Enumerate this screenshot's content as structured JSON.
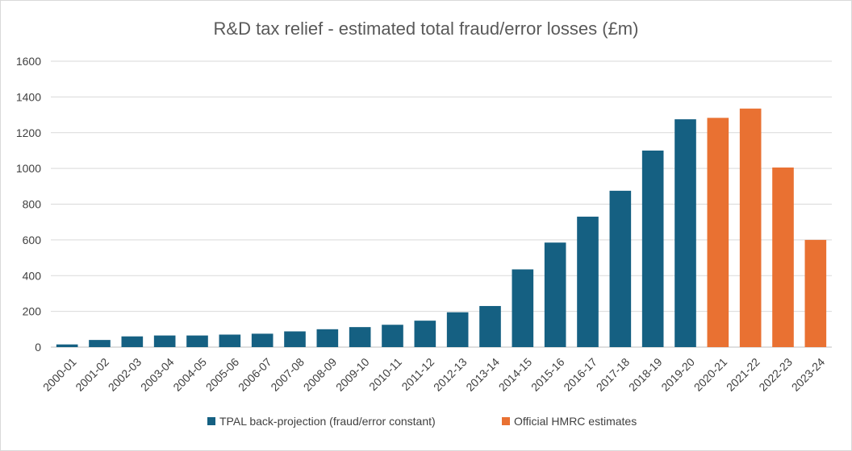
{
  "chart_data": {
    "type": "bar",
    "title": "R&D tax relief - estimated total fraud/error losses (£m)",
    "xlabel": "",
    "ylabel": "",
    "ylim": [
      0,
      1600
    ],
    "yticks": [
      "0",
      "200",
      "400",
      "600",
      "800",
      "1000",
      "1200",
      "1400",
      "1600"
    ],
    "grid": true,
    "legend_position": "bottom",
    "categories": [
      "2000-01",
      "2001-02",
      "2002-03",
      "2003-04",
      "2004-05",
      "2005-06",
      "2006-07",
      "2007-08",
      "2008-09",
      "2009-10",
      "2010-11",
      "2011-12",
      "2012-13",
      "2013-14",
      "2014-15",
      "2015-16",
      "2016-17",
      "2017-18",
      "2018-19",
      "2019-20",
      "2020-21",
      "2021-22",
      "2022-23",
      "2023-24"
    ],
    "series": [
      {
        "name": "TPAL back-projection (fraud/error constant)",
        "color": "#156082",
        "values": [
          15,
          40,
          60,
          65,
          65,
          70,
          75,
          88,
          100,
          112,
          125,
          148,
          195,
          230,
          435,
          585,
          730,
          875,
          1100,
          1275,
          null,
          null,
          null,
          null
        ]
      },
      {
        "name": "Official HMRC estimates",
        "color": "#E97132",
        "values": [
          null,
          null,
          null,
          null,
          null,
          null,
          null,
          null,
          null,
          null,
          null,
          null,
          null,
          null,
          null,
          null,
          null,
          null,
          null,
          null,
          1283,
          1335,
          1005,
          600
        ]
      }
    ]
  }
}
